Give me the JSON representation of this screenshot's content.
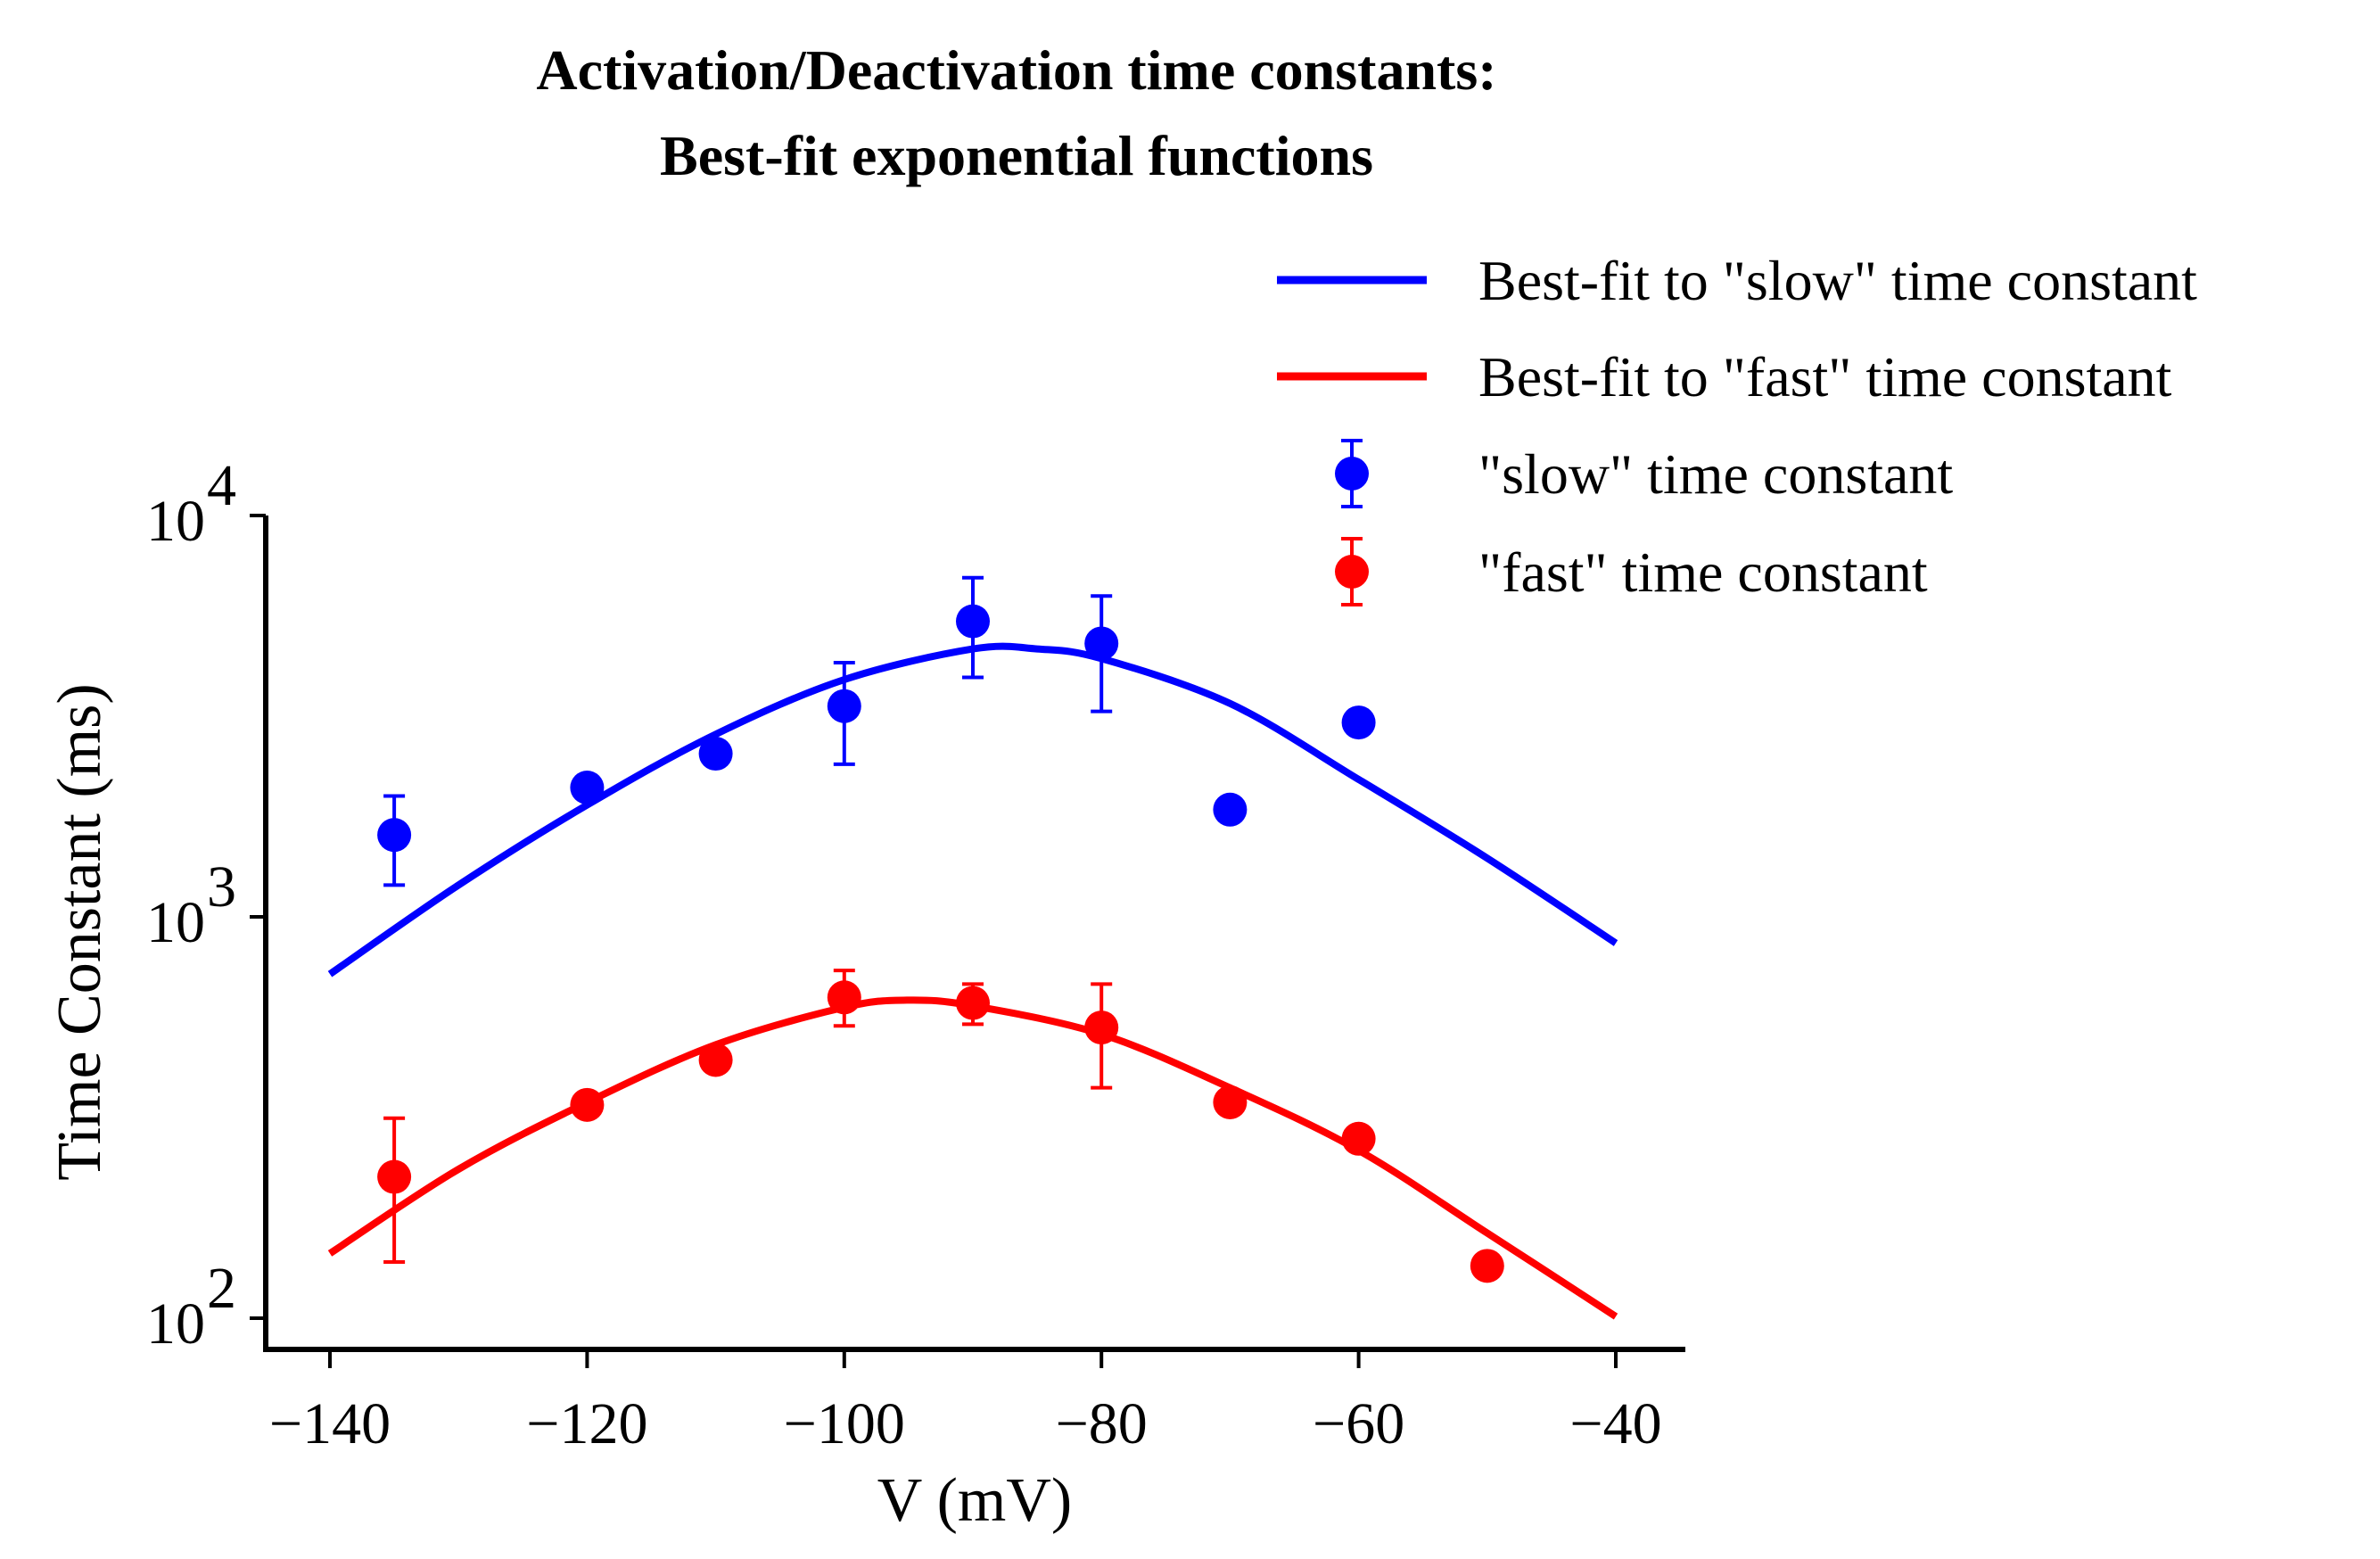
{
  "chart_data": {
    "type": "scatter+line",
    "title_lines": [
      "Activation/Deactivation time constants:",
      "Best-fit exponential functions"
    ],
    "xlabel": "V (mV)",
    "ylabel": "Time Constant (ms)",
    "xlim": [
      -145,
      -35
    ],
    "ylim_log10": [
      1.92,
      4.0
    ],
    "yscale": "log",
    "x_ticks": [
      {
        "value": -140,
        "label": "−140"
      },
      {
        "value": -120,
        "label": "−120"
      },
      {
        "value": -100,
        "label": "−100"
      },
      {
        "value": -80,
        "label": "−80"
      },
      {
        "value": -60,
        "label": "−60"
      },
      {
        "value": -40,
        "label": "−40"
      }
    ],
    "y_ticks": [
      {
        "value": 100,
        "base": "10",
        "exp": "2"
      },
      {
        "value": 1000,
        "base": "10",
        "exp": "3"
      },
      {
        "value": 10000,
        "base": "10",
        "exp": "4"
      }
    ],
    "legend_position": "top-right",
    "series": [
      {
        "name": "Best-fit to \"slow\" time constant",
        "kind": "line",
        "color": "#0000ff",
        "x": [
          -140,
          -130,
          -120,
          -110,
          -100,
          -90,
          -85,
          -80,
          -70,
          -60,
          -50,
          -40
        ],
        "y": [
          720,
          1200,
          1900,
          2850,
          3900,
          4650,
          4650,
          4400,
          3400,
          2200,
          1400,
          860
        ]
      },
      {
        "name": "Best-fit to \"fast\" time constant",
        "kind": "line",
        "color": "#ff0000",
        "x": [
          -140,
          -130,
          -120,
          -110,
          -100,
          -95,
          -90,
          -80,
          -70,
          -60,
          -50,
          -40
        ],
        "y": [
          145,
          235,
          345,
          480,
          595,
          620,
          600,
          510,
          375,
          262,
          163,
          101
        ]
      },
      {
        "name": "\"slow\" time constant",
        "kind": "points",
        "color": "#0000ff",
        "x": [
          -135,
          -120,
          -110,
          -100,
          -90,
          -80,
          -70,
          -60
        ],
        "y": [
          1600,
          2100,
          2550,
          3350,
          5450,
          4800,
          1850,
          3050
        ],
        "err_low": [
          1200,
          null,
          null,
          2400,
          3950,
          3250,
          null,
          null
        ],
        "err_high": [
          2000,
          null,
          null,
          4300,
          7000,
          6300,
          null,
          null
        ]
      },
      {
        "name": "\"fast\" time constant",
        "kind": "points",
        "color": "#ff0000",
        "x": [
          -135,
          -120,
          -110,
          -100,
          -90,
          -80,
          -70,
          -60,
          -50
        ],
        "y": [
          225,
          340,
          440,
          630,
          610,
          530,
          345,
          280,
          135
        ],
        "err_low": [
          138,
          null,
          null,
          535,
          540,
          375,
          null,
          null,
          null
        ],
        "err_high": [
          315,
          null,
          null,
          735,
          680,
          680,
          null,
          null,
          null
        ]
      }
    ]
  }
}
